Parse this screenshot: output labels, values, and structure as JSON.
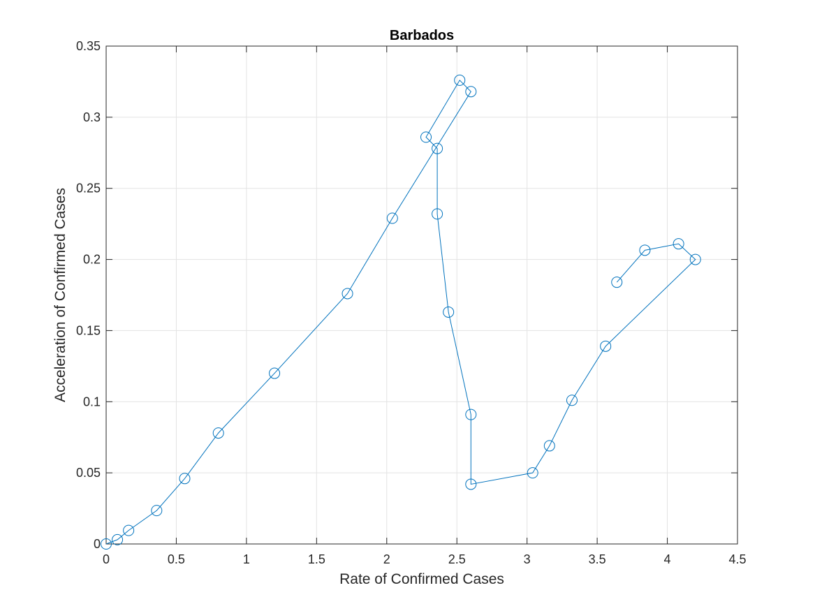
{
  "chart_data": {
    "type": "line",
    "title": "Barbados",
    "xlabel": "Rate of Confirmed Cases",
    "ylabel": "Acceleration of Confirmed Cases",
    "xlim": [
      0,
      4.5
    ],
    "ylim": [
      0,
      0.35
    ],
    "xticks": [
      0,
      0.5,
      1,
      1.5,
      2,
      2.5,
      3,
      3.5,
      4,
      4.5
    ],
    "yticks": [
      0,
      0.05,
      0.1,
      0.15,
      0.2,
      0.25,
      0.3,
      0.35
    ],
    "xtick_labels": [
      "0",
      "0.5",
      "1",
      "1.5",
      "2",
      "2.5",
      "3",
      "3.5",
      "4",
      "4.5"
    ],
    "ytick_labels": [
      "0",
      "0.05",
      "0.1",
      "0.15",
      "0.2",
      "0.25",
      "0.3",
      "0.35"
    ],
    "grid": true,
    "marker": "circle",
    "series": [
      {
        "color": "#0072BD",
        "points": [
          [
            0,
            0
          ],
          [
            0.08,
            0.003
          ],
          [
            0.16,
            0.0095
          ],
          [
            0.36,
            0.0235
          ],
          [
            0.56,
            0.046
          ],
          [
            0.8,
            0.078
          ],
          [
            1.2,
            0.12
          ],
          [
            1.72,
            0.176
          ],
          [
            2.04,
            0.229
          ],
          [
            2.6,
            0.318
          ],
          [
            2.52,
            0.326
          ],
          [
            2.28,
            0.286
          ],
          [
            2.36,
            0.278
          ],
          [
            2.36,
            0.232
          ],
          [
            2.44,
            0.163
          ],
          [
            2.6,
            0.091
          ],
          [
            2.6,
            0.042
          ],
          [
            3.04,
            0.05
          ],
          [
            3.16,
            0.069
          ],
          [
            3.32,
            0.101
          ],
          [
            3.56,
            0.139
          ],
          [
            4.2,
            0.2
          ],
          [
            4.08,
            0.211
          ],
          [
            3.84,
            0.2065
          ],
          [
            3.64,
            0.184
          ]
        ]
      }
    ]
  }
}
